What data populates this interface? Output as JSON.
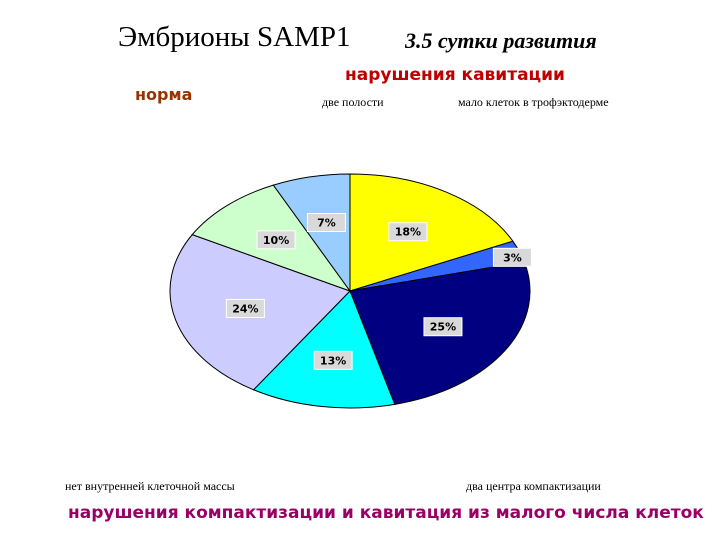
{
  "chart_data": {
    "type": "pie",
    "title": "Эмбрионы SAMP1",
    "subtitle": "3.5 сутки развития",
    "annotations": [
      "нарушения кавитации",
      "норма",
      "две полости",
      "мало клеток в трофэктодерме",
      "нет внутренней клеточной массы",
      "два центра компактизации",
      "нарушения компактизации и кавитация из малого числа клеток"
    ],
    "values": [
      18,
      3,
      25,
      13,
      24,
      10,
      7
    ],
    "value_labels": [
      "18%",
      "3%",
      "25%",
      "13%",
      "24%",
      "10%",
      "7%"
    ],
    "colors": [
      "#ffff00",
      "#3366ff",
      "#000080",
      "#00ffff",
      "#ccccff",
      "#ccffcc",
      "#99ccff"
    ]
  }
}
